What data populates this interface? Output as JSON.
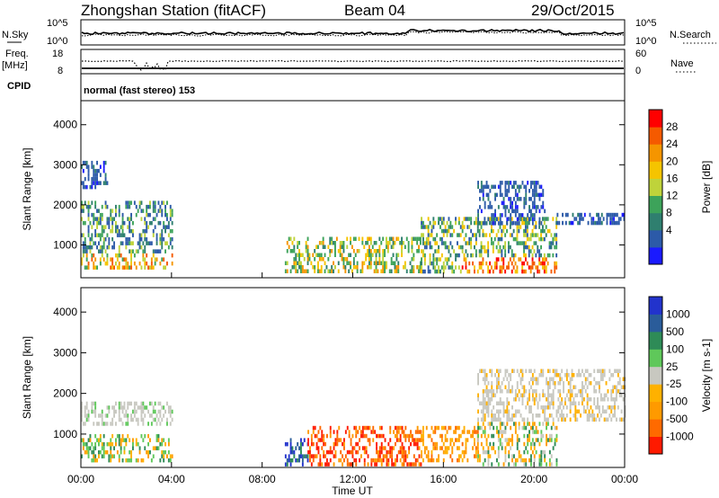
{
  "header": {
    "station": "Zhongshan Station (fitACF)",
    "beam": "Beam 04",
    "date": "29/Oct/2015"
  },
  "top_panels": {
    "nsky_label": "N.Sky",
    "nsky_ticks": [
      "10^5",
      "10^0"
    ],
    "nsearch_label": "N.Search",
    "nsearch_ticks": [
      "10^5",
      "10^0"
    ],
    "freq_label": [
      "Freq.",
      "[MHz]"
    ],
    "freq_ticks": [
      "18",
      "8"
    ],
    "nave_label": "Nave",
    "nave_ticks": [
      "60",
      "0"
    ],
    "cpid_label": "CPID",
    "cpid_text": "normal (fast stereo) 153"
  },
  "colors": {
    "power_scale": [
      "#1a1aff",
      "#2c5aa8",
      "#2f7f6f",
      "#3da35a",
      "#bfd33a",
      "#f5c400",
      "#f59500",
      "#f55a00",
      "#ff0000"
    ],
    "velocity_scale": [
      "#ff1a00",
      "#ff6a00",
      "#ff9a00",
      "#ffb100",
      "#c8c8c0",
      "#5fc85a",
      "#2e8b57",
      "#2a5c9a",
      "#2233cc"
    ]
  },
  "chart_data": [
    {
      "type": "heatmap",
      "title": "",
      "ylabel": "Slant Range [km]",
      "xlabel": "",
      "ylim": [
        180,
        4600
      ],
      "y_ticks": [
        "4000",
        "3000",
        "2000",
        "1000"
      ],
      "colorbar": {
        "label": "Power [dB]",
        "ticks": [
          "28",
          "24",
          "20",
          "16",
          "12",
          "8",
          "4"
        ],
        "range": [
          0,
          30
        ]
      },
      "echo_regions": [
        {
          "t0": 0.0,
          "t1": 4.0,
          "r0": 400,
          "r1": 2100,
          "level": "mixed, 4-28 dB"
        },
        {
          "t0": 0.0,
          "t1": 1.2,
          "r0": 2400,
          "r1": 3100,
          "level": "4-8 dB"
        },
        {
          "t0": 9.0,
          "t1": 15.0,
          "r0": 300,
          "r1": 1200,
          "level": "8-20 dB"
        },
        {
          "t0": 15.0,
          "t1": 21.0,
          "r0": 300,
          "r1": 1700,
          "level": "8-28 dB"
        },
        {
          "t0": 17.5,
          "t1": 20.5,
          "r0": 1500,
          "r1": 2600,
          "level": "4-8 dB"
        },
        {
          "t0": 21.0,
          "t1": 24.0,
          "r0": 1500,
          "r1": 1800,
          "level": "4-8 dB"
        }
      ]
    },
    {
      "type": "heatmap",
      "title": "",
      "ylabel": "Slant Range [km]",
      "xlabel": "Time UT",
      "ylim": [
        180,
        4600
      ],
      "x_ticks": [
        "00:00",
        "04:00",
        "08:00",
        "12:00",
        "16:00",
        "20:00",
        "00:00"
      ],
      "y_ticks": [
        "4000",
        "3000",
        "2000",
        "1000"
      ],
      "colorbar": {
        "label": "Velocity [m s-1]",
        "ticks": [
          "1000",
          "500",
          "100",
          "25",
          "-25",
          "-100",
          "-500",
          "-1000"
        ]
      },
      "echo_regions": [
        {
          "t0": 0.0,
          "t1": 4.0,
          "r0": 1300,
          "r1": 1800,
          "level": "-25 to 25 m/s (ground scatter)"
        },
        {
          "t0": 0.0,
          "t1": 4.0,
          "r0": 400,
          "r1": 1000,
          "level": "100 to -100 m/s"
        },
        {
          "t0": 9.0,
          "t1": 10.0,
          "r0": 300,
          "r1": 900,
          "level": "500 to 1000 m/s"
        },
        {
          "t0": 10.0,
          "t1": 15.0,
          "r0": 300,
          "r1": 1200,
          "level": "-500 to -1000 m/s"
        },
        {
          "t0": 15.0,
          "t1": 17.5,
          "r0": 400,
          "r1": 1200,
          "level": "-100 to -500 m/s"
        },
        {
          "t0": 17.5,
          "t1": 21.0,
          "r0": 300,
          "r1": 1300,
          "level": "-100 to 100 m/s"
        },
        {
          "t0": 17.5,
          "t1": 24.0,
          "r0": 1400,
          "r1": 2600,
          "level": "-25 to 25 m/s (ground scatter)"
        }
      ]
    }
  ]
}
